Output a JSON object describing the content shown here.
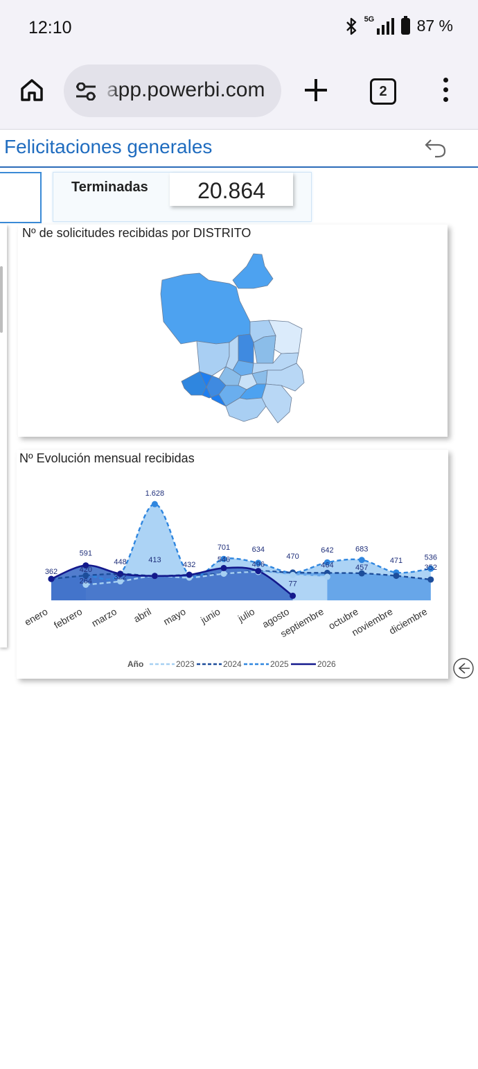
{
  "status_bar": {
    "time": "12:10",
    "network": "5G",
    "battery": "87 %",
    "icons": [
      "bluetooth-icon",
      "signal-icon",
      "battery-icon"
    ]
  },
  "browser": {
    "url": "app.powerbi.com",
    "tab_count": "2",
    "icons": [
      "home-icon",
      "site-settings-icon",
      "new-tab-icon",
      "menu-icon"
    ]
  },
  "report": {
    "title": "Felicitaciones generales",
    "kpi": {
      "label": "Terminadas",
      "value": "20.864"
    }
  },
  "map": {
    "title": "Nº de solicitudes recibidas por DISTRITO"
  },
  "chart_data": {
    "type": "line",
    "title": "Nº Evolución mensual recibidas",
    "categories": [
      "enero",
      "febrero",
      "marzo",
      "abril",
      "mayo",
      "junio",
      "julio",
      "agosto",
      "septiembre",
      "octubre",
      "noviembre",
      "diciembre"
    ],
    "legend": {
      "title": "Año",
      "position": "bottom"
    },
    "series": [
      {
        "name": "2023",
        "color": "#a6d0f2",
        "style": "dashed",
        "values": [
          null,
          264,
          322,
          413,
          385,
          450,
          480,
          430,
          400,
          null,
          null,
          null
        ]
      },
      {
        "name": "2024",
        "color": "#1d4d9a",
        "style": "dashed",
        "values": [
          362,
          420,
          448,
          413,
          432,
          450,
          496,
          470,
          464,
          457,
          415,
          352
        ]
      },
      {
        "name": "2025",
        "color": "#2f86df",
        "style": "dashed",
        "values": [
          362,
          420,
          448,
          1628,
          432,
          701,
          634,
          470,
          642,
          683,
          471,
          536
        ]
      },
      {
        "name": "2026",
        "color": "#13198c",
        "style": "solid",
        "values": [
          362,
          591,
          448,
          413,
          432,
          546,
          496,
          77,
          null,
          null,
          null,
          null
        ]
      }
    ],
    "data_labels": [
      "362",
      "591",
      "420",
      "264",
      "448",
      "322",
      "1.628",
      "413",
      "432",
      "701",
      "546",
      "634",
      "496",
      "470",
      "77",
      "642",
      "464",
      "683",
      "457",
      "471",
      "536",
      "352"
    ],
    "ylim": [
      0,
      1700
    ]
  }
}
